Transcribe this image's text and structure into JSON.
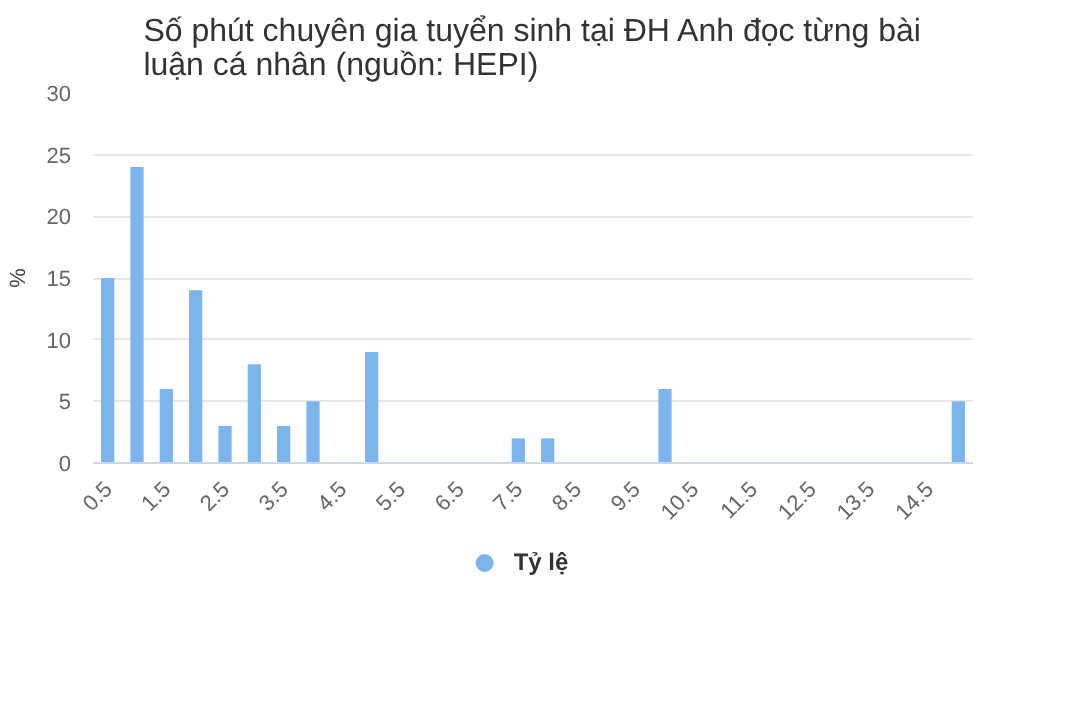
{
  "chart_data": {
    "type": "bar",
    "title": "Số phút chuyên gia tuyển sinh tại ĐH Anh đọc từng bài\nluận cá nhân (nguồn: HEPI)",
    "ylabel": "%",
    "categories": [
      "0.5",
      null,
      "1.5",
      null,
      "2.5",
      null,
      "3.5",
      null,
      "4.5",
      null,
      "5.5",
      null,
      "6.5",
      null,
      "7.5",
      null,
      "8.5",
      null,
      "9.5",
      null,
      "10.5",
      null,
      "11.5",
      null,
      "12.5",
      null,
      "13.5",
      null,
      "14.5",
      null
    ],
    "series": [
      {
        "name": "Tỷ lệ",
        "color": "#7cb5ec",
        "values": [
          15,
          24,
          6,
          14,
          3,
          8,
          3,
          5,
          0,
          9,
          0,
          0,
          0,
          0,
          2,
          2,
          0,
          0,
          0,
          6,
          0,
          0,
          0,
          0,
          0,
          0,
          0,
          0,
          0,
          5
        ]
      }
    ],
    "ylim": [
      0,
      30
    ],
    "yticks": [
      0,
      5,
      10,
      15,
      20,
      25,
      30
    ],
    "grid": "y",
    "legend": "bottom"
  }
}
